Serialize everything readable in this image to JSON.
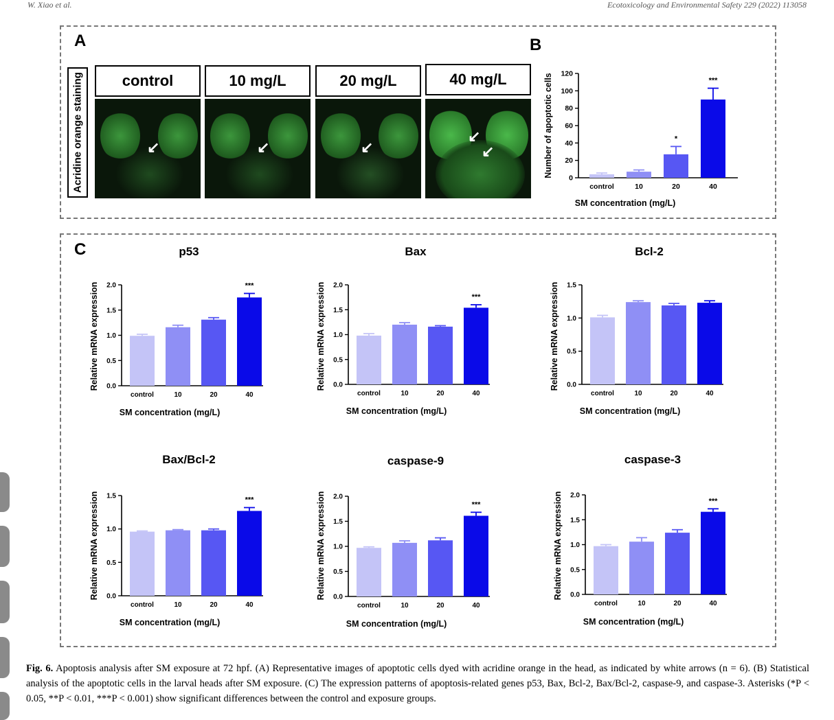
{
  "header": {
    "left": "W. Xiao et al.",
    "right": "Ecotoxicology and Environmental Safety 229 (2022) 113058"
  },
  "panels": {
    "a": "A",
    "b": "B",
    "c": "C"
  },
  "panel_a": {
    "side_label": "Acridine orange staining",
    "image_labels": [
      "control",
      "10 mg/L",
      "20 mg/L",
      "40 mg/L"
    ]
  },
  "caption": {
    "label": "Fig. 6.",
    "text": "Apoptosis analysis after SM exposure at 72 hpf. (A) Representative images of apoptotic cells dyed with acridine orange in the head, as indicated by white arrows (n = 6). (B) Statistical analysis of the apoptotic cells in the larval heads after SM exposure. (C) The expression patterns of apoptosis-related genes p53, Bax, Bcl-2, Bax/Bcl-2, caspase-9, and caspase-3. Asterisks (*P < 0.05, **P < 0.01, ***P < 0.001) show significant differences between the control and exposure groups."
  },
  "colors": {
    "control": "#c4c4f7",
    "c10": "#8f8ff5",
    "c20": "#5757f3",
    "c40": "#0a0ae8",
    "micro_bg": "#0a170a",
    "fluor": "#3aa33a"
  },
  "chart_data": [
    {
      "id": "B",
      "type": "bar",
      "title": "",
      "xlabel": "SM concentration (mg/L)",
      "ylabel": "Number of apoptotic cells",
      "categories": [
        "control",
        "10",
        "20",
        "40"
      ],
      "values": [
        4,
        7,
        27,
        90
      ],
      "errors": [
        1.5,
        2,
        9,
        13
      ],
      "significance": [
        "",
        "",
        "*",
        "***"
      ],
      "ylim": [
        0,
        120
      ],
      "yticks": [
        "0",
        "20",
        "40",
        "60",
        "80",
        "100",
        "120"
      ]
    },
    {
      "id": "p53",
      "type": "bar",
      "title": "p53",
      "xlabel": "SM concentration (mg/L)",
      "ylabel": "Relative mRNA expression",
      "categories": [
        "control",
        "10",
        "20",
        "40"
      ],
      "values": [
        0.99,
        1.16,
        1.31,
        1.75
      ],
      "errors": [
        0.03,
        0.04,
        0.04,
        0.08
      ],
      "significance": [
        "",
        "",
        "",
        "***"
      ],
      "ylim": [
        0,
        2.0
      ],
      "yticks": [
        "0.0",
        "0.5",
        "1.0",
        "1.5",
        "2.0"
      ]
    },
    {
      "id": "Bax",
      "type": "bar",
      "title": "Bax",
      "xlabel": "SM concentration (mg/L)",
      "ylabel": "Relative mRNA expression",
      "categories": [
        "control",
        "10",
        "20",
        "40"
      ],
      "values": [
        0.98,
        1.2,
        1.16,
        1.54
      ],
      "errors": [
        0.04,
        0.04,
        0.02,
        0.06
      ],
      "significance": [
        "",
        "",
        "",
        "***"
      ],
      "ylim": [
        0,
        2.0
      ],
      "yticks": [
        "0.0",
        "0.5",
        "1.0",
        "1.5",
        "2.0"
      ]
    },
    {
      "id": "Bcl-2",
      "type": "bar",
      "title": "Bcl-2",
      "xlabel": "SM concentration (mg/L)",
      "ylabel": "Relative mRNA expression",
      "categories": [
        "control",
        "10",
        "20",
        "40"
      ],
      "values": [
        1.01,
        1.24,
        1.19,
        1.23
      ],
      "errors": [
        0.03,
        0.02,
        0.03,
        0.03
      ],
      "significance": [
        "",
        "",
        "",
        ""
      ],
      "ylim": [
        0,
        1.5
      ],
      "yticks": [
        "0.0",
        "0.5",
        "1.0",
        "1.5"
      ]
    },
    {
      "id": "Bax/Bcl-2",
      "type": "bar",
      "title": "Bax/Bcl-2",
      "xlabel": "SM concentration (mg/L)",
      "ylabel": "Relative mRNA expression",
      "categories": [
        "control",
        "10",
        "20",
        "40"
      ],
      "values": [
        0.96,
        0.98,
        0.98,
        1.27
      ],
      "errors": [
        0.01,
        0.01,
        0.02,
        0.05
      ],
      "significance": [
        "",
        "",
        "",
        "***"
      ],
      "ylim": [
        0,
        1.5
      ],
      "yticks": [
        "0.0",
        "0.5",
        "1.0",
        "1.5"
      ]
    },
    {
      "id": "caspase-9",
      "type": "bar",
      "title": "caspase-9",
      "xlabel": "SM concentration (mg/L)",
      "ylabel": "Relative mRNA expression",
      "categories": [
        "control",
        "10",
        "20",
        "40"
      ],
      "values": [
        0.97,
        1.07,
        1.12,
        1.61
      ],
      "errors": [
        0.02,
        0.04,
        0.05,
        0.07
      ],
      "significance": [
        "",
        "",
        "",
        "***"
      ],
      "ylim": [
        0,
        2.0
      ],
      "yticks": [
        "0.0",
        "0.5",
        "1.0",
        "1.5",
        "2.0"
      ]
    },
    {
      "id": "caspase-3",
      "type": "bar",
      "title": "caspase-3",
      "xlabel": "SM concentration (mg/L)",
      "ylabel": "Relative mRNA expression",
      "categories": [
        "control",
        "10",
        "20",
        "40"
      ],
      "values": [
        0.97,
        1.06,
        1.24,
        1.66
      ],
      "errors": [
        0.03,
        0.08,
        0.06,
        0.06
      ],
      "significance": [
        "",
        "",
        "",
        "***"
      ],
      "ylim": [
        0,
        2.0
      ],
      "yticks": [
        "0.0",
        "0.5",
        "1.0",
        "1.5",
        "2.0"
      ]
    }
  ]
}
